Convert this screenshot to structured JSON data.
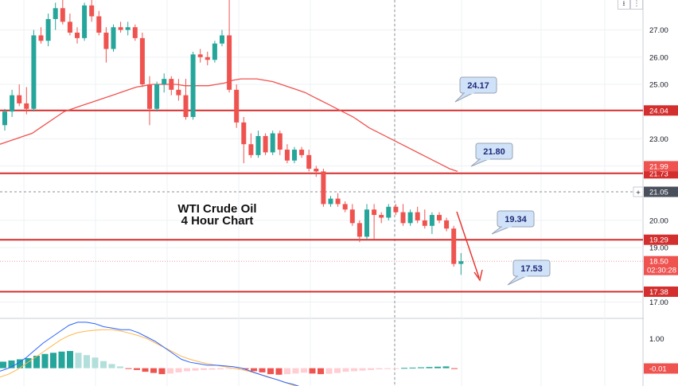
{
  "chart_data": {
    "type": "candlestick",
    "title": "WTI Crude Oil",
    "subtitle": "4 Hour Chart",
    "price_axis": {
      "ylim": [
        16.4,
        28.1
      ],
      "ticks": [
        27.0,
        26.0,
        25.0,
        23.0,
        22.0,
        20.0,
        19.0,
        17.0
      ],
      "tick_labels": [
        "27.00",
        "26.00",
        "25.00",
        "23.00",
        "22.00",
        "20.00",
        "19.00",
        "17.00"
      ]
    },
    "indicator_axis": {
      "ylim": [
        -0.6,
        1.6
      ],
      "ticks": [
        1.0
      ],
      "tick_labels": [
        "1.00"
      ]
    },
    "horizontal_levels": [
      {
        "value": 24.04,
        "label": "24.04",
        "color": "#d32f2f"
      },
      {
        "value": 21.73,
        "label": "21.73",
        "color": "#d32f2f"
      },
      {
        "value": 19.29,
        "label": "19.29",
        "color": "#d32f2f"
      },
      {
        "value": 17.38,
        "label": "17.38",
        "color": "#d32f2f"
      }
    ],
    "axis_tags": [
      {
        "value": 21.99,
        "label": "21.99",
        "color": "#ef5350"
      },
      {
        "value": 21.05,
        "label": "21.05",
        "color": "#4a4f5c"
      },
      {
        "value": 18.5,
        "label": "18.50",
        "color": "#ef5350",
        "sub": "02:30:28"
      },
      {
        "value": -0.01,
        "label": "-0.01",
        "color": "#ef5350",
        "pane": "indicator"
      }
    ],
    "crosshair_price": 21.05,
    "callouts": [
      {
        "text": "24.17",
        "price": 24.17
      },
      {
        "text": "21.80",
        "price": 21.8
      },
      {
        "text": "19.34",
        "price": 19.34
      },
      {
        "text": "17.53",
        "price": 17.53
      }
    ],
    "candles": [
      [
        23.5,
        24.1,
        23.3,
        24.0
      ],
      [
        24.0,
        24.8,
        23.8,
        24.6
      ],
      [
        24.6,
        25.0,
        24.2,
        24.3
      ],
      [
        24.3,
        24.9,
        23.9,
        24.1
      ],
      [
        24.1,
        27.0,
        24.0,
        26.8
      ],
      [
        26.8,
        27.1,
        26.5,
        26.6
      ],
      [
        26.6,
        27.6,
        26.4,
        27.4
      ],
      [
        27.4,
        28.0,
        27.0,
        27.8
      ],
      [
        27.8,
        28.1,
        27.2,
        27.3
      ],
      [
        27.3,
        27.6,
        26.8,
        26.9
      ],
      [
        26.9,
        27.1,
        26.5,
        26.7
      ],
      [
        26.7,
        28.0,
        26.6,
        27.9
      ],
      [
        27.9,
        28.1,
        27.3,
        27.5
      ],
      [
        27.5,
        27.7,
        26.8,
        26.9
      ],
      [
        26.9,
        27.1,
        25.8,
        26.3
      ],
      [
        26.3,
        27.2,
        26.2,
        27.1
      ],
      [
        27.1,
        27.3,
        26.9,
        27.0
      ],
      [
        27.0,
        27.3,
        26.8,
        27.1
      ],
      [
        27.1,
        27.2,
        26.6,
        26.7
      ],
      [
        26.7,
        26.9,
        24.9,
        25.0
      ],
      [
        25.0,
        25.3,
        23.5,
        24.1
      ],
      [
        24.1,
        25.1,
        24.0,
        25.0
      ],
      [
        25.0,
        25.4,
        24.7,
        25.2
      ],
      [
        25.2,
        25.3,
        24.6,
        24.8
      ],
      [
        24.8,
        25.2,
        24.4,
        24.6
      ],
      [
        24.6,
        25.2,
        23.7,
        23.8
      ],
      [
        23.8,
        26.2,
        23.7,
        26.1
      ],
      [
        26.1,
        26.3,
        25.8,
        26.0
      ],
      [
        26.0,
        26.2,
        25.7,
        25.9
      ],
      [
        25.9,
        26.6,
        25.8,
        26.5
      ],
      [
        26.5,
        27.0,
        26.4,
        26.8
      ],
      [
        26.8,
        28.1,
        24.7,
        24.8
      ],
      [
        24.8,
        25.0,
        23.4,
        23.6
      ],
      [
        23.6,
        23.8,
        22.1,
        22.8
      ],
      [
        22.8,
        23.2,
        22.3,
        22.4
      ],
      [
        22.4,
        23.3,
        22.3,
        23.1
      ],
      [
        23.1,
        23.2,
        22.4,
        22.5
      ],
      [
        22.5,
        23.3,
        22.4,
        23.2
      ],
      [
        23.2,
        23.3,
        22.4,
        22.6
      ],
      [
        22.6,
        22.8,
        22.1,
        22.2
      ],
      [
        22.2,
        22.7,
        22.1,
        22.6
      ],
      [
        22.6,
        22.7,
        22.3,
        22.4
      ],
      [
        22.4,
        22.6,
        21.8,
        21.9
      ],
      [
        21.9,
        22.0,
        21.6,
        21.8
      ],
      [
        21.8,
        21.9,
        20.5,
        20.6
      ],
      [
        20.6,
        20.9,
        20.5,
        20.8
      ],
      [
        20.8,
        21.0,
        20.5,
        20.6
      ],
      [
        20.6,
        20.7,
        20.3,
        20.4
      ],
      [
        20.4,
        20.6,
        19.8,
        19.9
      ],
      [
        19.9,
        20.0,
        19.2,
        19.4
      ],
      [
        19.4,
        20.6,
        19.3,
        20.4
      ],
      [
        20.4,
        20.6,
        19.3,
        20.2
      ],
      [
        20.2,
        20.3,
        19.9,
        20.1
      ],
      [
        20.1,
        20.6,
        20.0,
        20.5
      ],
      [
        20.5,
        20.6,
        20.2,
        20.3
      ],
      [
        20.3,
        20.6,
        19.8,
        19.9
      ],
      [
        19.9,
        20.4,
        19.8,
        20.3
      ],
      [
        20.3,
        20.5,
        19.9,
        20.0
      ],
      [
        20.0,
        20.4,
        19.7,
        19.8
      ],
      [
        19.8,
        20.3,
        19.5,
        20.2
      ],
      [
        20.2,
        20.3,
        19.9,
        20.0
      ],
      [
        20.0,
        20.1,
        19.6,
        19.7
      ],
      [
        19.7,
        19.8,
        18.3,
        18.4
      ],
      [
        18.4,
        18.8,
        18.0,
        18.5
      ]
    ],
    "moving_average": {
      "color": "#ef5350",
      "values": [
        22.8,
        22.9,
        23.0,
        23.1,
        23.2,
        23.4,
        23.6,
        23.8,
        24.0,
        24.1,
        24.2,
        24.3,
        24.4,
        24.5,
        24.6,
        24.7,
        24.8,
        24.9,
        24.95,
        25.0,
        25.0,
        25.0,
        25.0,
        24.95,
        24.95,
        24.95,
        24.95,
        25.0,
        25.05,
        25.15,
        25.2,
        25.2,
        25.2,
        25.15,
        25.1,
        25.0,
        24.9,
        24.8,
        24.7,
        24.55,
        24.4,
        24.25,
        24.1,
        23.95,
        23.8,
        23.6,
        23.4,
        23.25,
        23.1,
        22.95,
        22.8,
        22.65,
        22.5,
        22.35,
        22.2,
        22.05,
        21.9,
        21.8
      ]
    },
    "histogram": {
      "positive_strong": "#26a69a",
      "positive_weak": "#b2dfdb",
      "negative_strong": "#ef5350",
      "negative_weak": "#ffcdd2",
      "values": [
        0.22,
        0.26,
        0.3,
        0.34,
        0.42,
        0.48,
        0.52,
        0.56,
        0.58,
        0.52,
        0.44,
        0.36,
        0.24,
        0.14,
        0.06,
        -0.02,
        -0.06,
        -0.12,
        -0.16,
        -0.2,
        -0.18,
        -0.14,
        -0.1,
        -0.08,
        -0.06,
        -0.05,
        -0.04,
        -0.02,
        -0.01,
        -0.04,
        -0.1,
        -0.14,
        -0.2,
        -0.22,
        -0.2,
        -0.18,
        -0.15,
        -0.18,
        -0.2,
        -0.19,
        -0.16,
        -0.12,
        -0.1,
        -0.08,
        -0.06,
        -0.04,
        -0.03,
        -0.02,
        0.01,
        0.02,
        0.03,
        0.04,
        0.05,
        0.06,
        -0.01
      ]
    },
    "macd_line": {
      "color": "#2962ff",
      "values": [
        -0.1,
        0.0,
        0.15,
        0.35,
        0.6,
        0.85,
        1.05,
        1.25,
        1.45,
        1.55,
        1.55,
        1.5,
        1.4,
        1.35,
        1.3,
        1.3,
        1.2,
        1.05,
        0.9,
        0.7,
        0.5,
        0.3,
        0.2,
        0.15,
        0.1,
        0.1,
        0.08,
        0.05,
        0.0,
        -0.1,
        -0.2,
        -0.3,
        -0.38,
        -0.48,
        -0.55,
        -0.65
      ]
    },
    "signal_line": {
      "color": "#ffb74d",
      "values": [
        -0.3,
        -0.2,
        -0.05,
        0.15,
        0.35,
        0.55,
        0.75,
        0.95,
        1.1,
        1.2,
        1.25,
        1.28,
        1.3,
        1.3,
        1.25,
        1.18,
        1.1,
        1.0,
        0.85,
        0.7,
        0.55,
        0.4,
        0.3,
        0.22,
        0.15,
        0.1,
        0.05,
        0.0,
        -0.05,
        -0.12,
        -0.2,
        -0.28,
        -0.38,
        -0.48,
        -0.58,
        -0.68
      ]
    },
    "colors": {
      "up": "#26a69a",
      "down": "#ef5350",
      "level_line": "#d32f2f",
      "callout_fill": "#cfe2f7",
      "callout_border": "#9aa3b5",
      "arrow": "#e53935",
      "grid": "#eef0f3"
    }
  },
  "toolbar": {
    "download_icon": "download-icon",
    "download_glyph": "⭳",
    "more_icon": "more-icon",
    "more_glyph": "⋮"
  }
}
